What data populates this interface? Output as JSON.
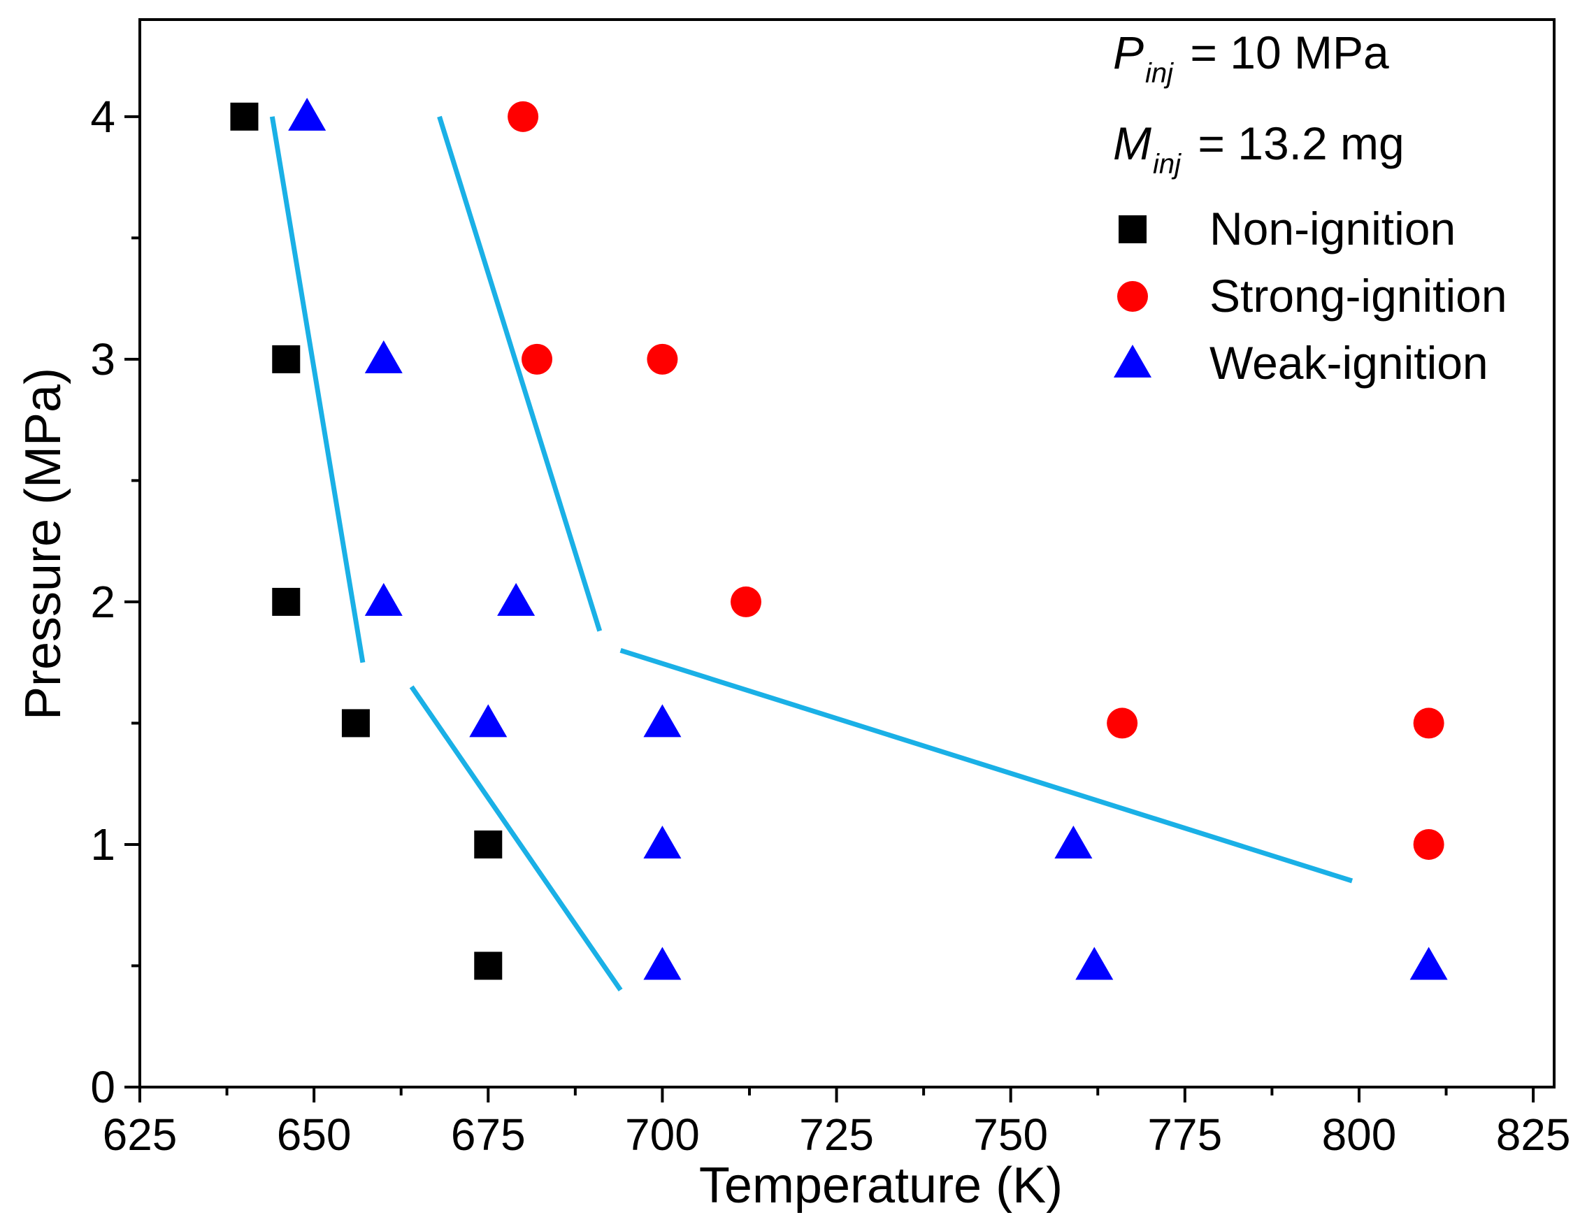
{
  "chart_data": {
    "type": "scatter",
    "title": "",
    "xlabel": "Temperature (K)",
    "ylabel": "Pressure (MPa)",
    "xlim": [
      625,
      828
    ],
    "ylim": [
      0,
      4.4
    ],
    "xticks": [
      625,
      650,
      675,
      700,
      725,
      750,
      775,
      800,
      825
    ],
    "xtick_labels": [
      "625",
      "650",
      "675",
      "700",
      "725",
      "750",
      "775",
      "800",
      "825"
    ],
    "yticks": [
      0,
      1,
      2,
      3,
      4
    ],
    "ytick_labels": [
      "0",
      "1",
      "2",
      "3",
      "4"
    ],
    "annotations": [
      {
        "var": "P",
        "sub": "inj",
        "text": " = 10 MPa"
      },
      {
        "var": "M",
        "sub": "inj",
        "text": " = 13.2 mg"
      }
    ],
    "series": [
      {
        "name": "Non-ignition",
        "marker": "square",
        "color": "#000000",
        "points": [
          [
            640,
            4.0
          ],
          [
            646,
            3.0
          ],
          [
            646,
            2.0
          ],
          [
            656,
            1.5
          ],
          [
            675,
            1.0
          ],
          [
            675,
            0.5
          ]
        ]
      },
      {
        "name": "Strong-ignition",
        "marker": "circle",
        "color": "#ff0000",
        "points": [
          [
            680,
            4.0
          ],
          [
            682,
            3.0
          ],
          [
            700,
            3.0
          ],
          [
            712,
            2.0
          ],
          [
            766,
            1.5
          ],
          [
            810,
            1.5
          ],
          [
            810,
            1.0
          ]
        ]
      },
      {
        "name": "Weak-ignition",
        "marker": "triangle",
        "color": "#0000ff",
        "points": [
          [
            649,
            4.0
          ],
          [
            660,
            3.0
          ],
          [
            660,
            2.0
          ],
          [
            679,
            2.0
          ],
          [
            675,
            1.5
          ],
          [
            700,
            1.5
          ],
          [
            700,
            1.0
          ],
          [
            759,
            1.0
          ],
          [
            700,
            0.5
          ],
          [
            762,
            0.5
          ],
          [
            810,
            0.5
          ]
        ]
      }
    ],
    "boundary_lines": {
      "color": "#1ab0e6",
      "lines": [
        [
          [
            644,
            4.0
          ],
          [
            657,
            1.75
          ]
        ],
        [
          [
            668,
            4.0
          ],
          [
            691,
            1.88
          ]
        ],
        [
          [
            664,
            1.65
          ],
          [
            694,
            0.4
          ]
        ],
        [
          [
            694,
            1.8
          ],
          [
            799,
            0.85
          ]
        ]
      ]
    }
  }
}
